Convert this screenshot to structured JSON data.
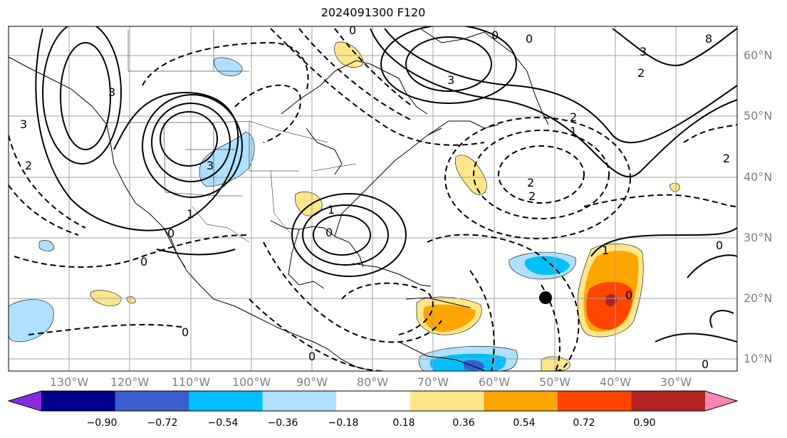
{
  "title": "2024091300 F120",
  "lat_labels": [
    "60°N",
    "50°N",
    "40°N",
    "30°N",
    "20°N",
    "10°N"
  ],
  "lon_labels": [
    "130°W",
    "120°W",
    "110°W",
    "100°W",
    "90°W",
    "80°W",
    "70°W",
    "60°W",
    "50°W",
    "40°W",
    "30°W"
  ],
  "colorbar": {
    "ticks": [
      "−0.90",
      "−0.72",
      "−0.54",
      "−0.36",
      "−0.18",
      "0.18",
      "0.36",
      "0.54",
      "0.72",
      "0.90"
    ],
    "colors": [
      "#8a2be2",
      "#00008b",
      "#3a5fcd",
      "#00bfff",
      "#b0e0ff",
      "#ffffff",
      "#ffe68a",
      "#ffa500",
      "#ff4500",
      "#b22222",
      "#ff85b0"
    ],
    "extend": "both"
  },
  "contour_labels": [
    "0",
    "0",
    "0",
    "0",
    "0",
    "0",
    "0",
    "0",
    "0",
    "0",
    "0",
    "1",
    "1",
    "1",
    "1",
    "2",
    "2",
    "2",
    "2",
    "2",
    "2",
    "3",
    "3",
    "3",
    "3",
    "3",
    "8"
  ],
  "marker": "storm-position-dot"
}
